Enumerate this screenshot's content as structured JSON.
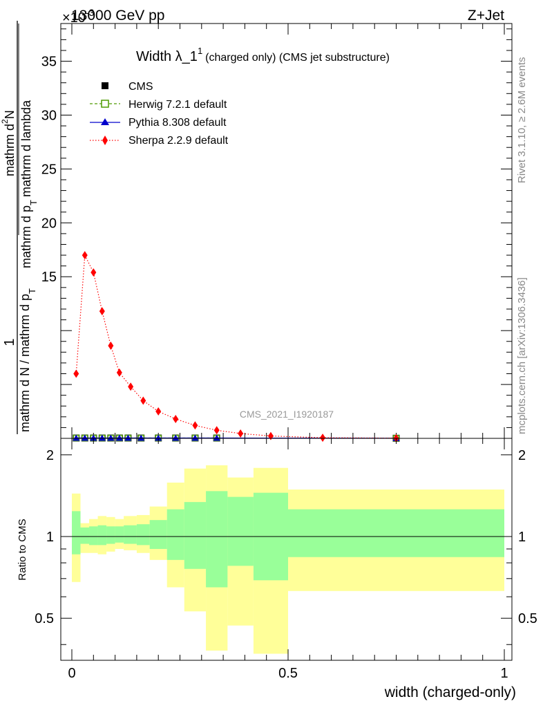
{
  "header": {
    "left": "13000 GeV pp",
    "right": "Z+Jet",
    "exponent_base": "×10",
    "exponent_power": "-3"
  },
  "side_labels": {
    "rivet": "Rivet 3.1.10, ≥ 2.6M events",
    "mcplots": "mcplots.cern.ch [arXiv:1306.3436]"
  },
  "chart_data": [
    {
      "type": "line",
      "title_main": "Width λ_1",
      "title_sup": "1",
      "title_rest": "(charged only) (CMS jet substructure)",
      "ylabel_num": "1",
      "ylabel_num2": "mathrm d",
      "ylabel_num2_sup": "2",
      "ylabel_num2_end": "N",
      "ylabel_den": "mathrm d N / mathrm d p",
      "ylabel_den_sub": "T",
      "ylabel_den2": "mathrm d p",
      "ylabel_den2_sub": "T",
      "ylabel_den3": "mathrm d lambda",
      "watermark": "CMS_2021_I1920187",
      "xlim": [
        0,
        1
      ],
      "ylim": [
        0,
        38.5
      ],
      "yticks": [
        15,
        20,
        25,
        30,
        35
      ],
      "legend_position": "top-left",
      "series": [
        {
          "name": "CMS",
          "color": "#000000",
          "marker": "square",
          "x": [
            0.01,
            0.03,
            0.05,
            0.07,
            0.09,
            0.11,
            0.13,
            0.16,
            0.2,
            0.24,
            0.285,
            0.335,
            0.75
          ],
          "y": [
            0.03,
            0.03,
            0.03,
            0.03,
            0.03,
            0.03,
            0.03,
            0.03,
            0.03,
            0.03,
            0.03,
            0.03,
            0.01
          ]
        },
        {
          "name": "Herwig 7.2.1 default",
          "color": "#4d9a00",
          "marker": "open-square",
          "dash": "dashed",
          "x": [
            0.01,
            0.03,
            0.05,
            0.07,
            0.09,
            0.11,
            0.13,
            0.16,
            0.2,
            0.24,
            0.285,
            0.335,
            0.75
          ],
          "y": [
            0.03,
            0.03,
            0.03,
            0.03,
            0.03,
            0.03,
            0.03,
            0.03,
            0.03,
            0.03,
            0.03,
            0.03,
            0.01
          ]
        },
        {
          "name": "Pythia 8.308 default",
          "color": "#0000cc",
          "marker": "triangle",
          "dash": "solid",
          "x": [
            0.01,
            0.03,
            0.05,
            0.07,
            0.09,
            0.11,
            0.13,
            0.16,
            0.2,
            0.24,
            0.285,
            0.335,
            0.75
          ],
          "y": [
            0.03,
            0.03,
            0.03,
            0.03,
            0.03,
            0.03,
            0.03,
            0.03,
            0.03,
            0.03,
            0.03,
            0.03,
            0.01
          ]
        },
        {
          "name": "Sherpa 2.2.9 default",
          "color": "#ff0000",
          "marker": "diamond",
          "dash": "dotted",
          "x": [
            0.01,
            0.03,
            0.05,
            0.07,
            0.09,
            0.11,
            0.136,
            0.165,
            0.2,
            0.24,
            0.285,
            0.335,
            0.39,
            0.46,
            0.58,
            0.75
          ],
          "y": [
            6.0,
            17.0,
            15.4,
            11.8,
            8.6,
            6.1,
            4.8,
            3.5,
            2.5,
            1.8,
            1.2,
            0.75,
            0.45,
            0.22,
            0.06,
            0.02
          ]
        }
      ]
    },
    {
      "type": "area",
      "ylabel": "Ratio to CMS",
      "xlabel": "width (charged-only)",
      "xlim": [
        0,
        1
      ],
      "ylim": [
        0.35,
        2.3
      ],
      "xticks": [
        0,
        0.5,
        1
      ],
      "xtick_labels": [
        "0",
        "0.5",
        "1"
      ],
      "yticks": [
        0.5,
        1,
        2
      ],
      "ytick_labels": [
        "0.5",
        "1",
        "2"
      ],
      "band_colors": {
        "inner": "#99ff99",
        "outer": "#ffff99"
      },
      "bins": [
        0,
        0.02,
        0.04,
        0.06,
        0.08,
        0.1,
        0.12,
        0.15,
        0.18,
        0.22,
        0.26,
        0.31,
        0.36,
        0.42,
        0.5,
        1.0
      ],
      "inner_lo": [
        0.86,
        0.94,
        0.93,
        0.93,
        0.94,
        0.95,
        0.94,
        0.93,
        0.9,
        0.82,
        0.76,
        0.65,
        0.78,
        0.69,
        0.84
      ],
      "inner_hi": [
        1.24,
        1.08,
        1.09,
        1.1,
        1.09,
        1.09,
        1.1,
        1.11,
        1.15,
        1.26,
        1.34,
        1.47,
        1.4,
        1.45,
        1.26
      ],
      "outer_lo": [
        0.68,
        0.87,
        0.87,
        0.86,
        0.88,
        0.9,
        0.89,
        0.87,
        0.82,
        0.65,
        0.53,
        0.38,
        0.47,
        0.37,
        0.63
      ],
      "outer_hi": [
        1.44,
        1.12,
        1.16,
        1.19,
        1.18,
        1.16,
        1.19,
        1.2,
        1.29,
        1.58,
        1.78,
        1.83,
        1.65,
        1.79,
        1.49
      ]
    }
  ]
}
